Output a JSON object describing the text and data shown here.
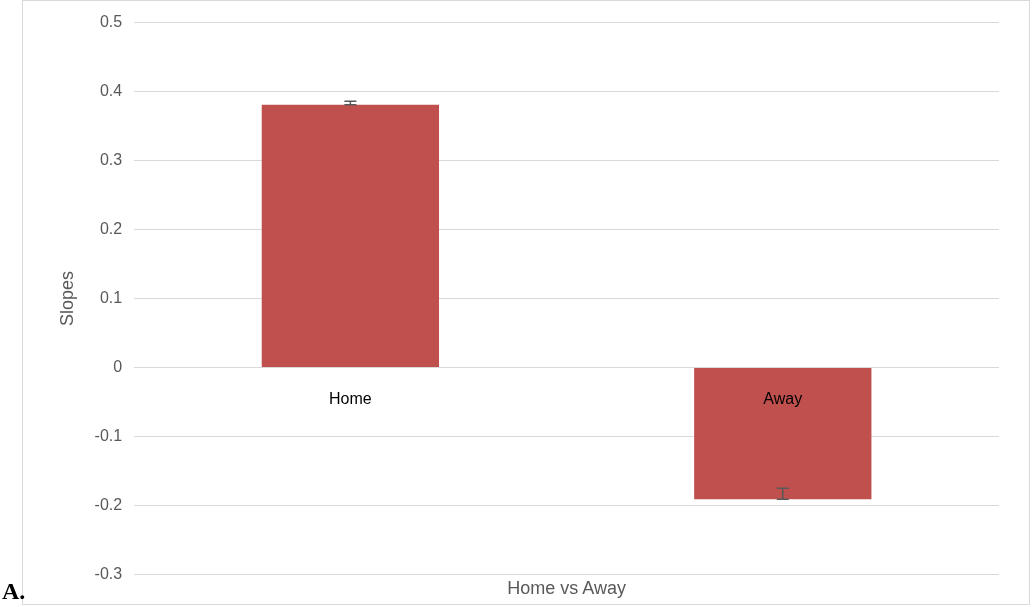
{
  "chart_data": {
    "type": "bar",
    "xlabel": "Home vs Away",
    "ylabel": "Slopes",
    "categories": [
      "Home",
      "Away"
    ],
    "values": [
      0.381,
      -0.191
    ],
    "color": "#c0504d",
    "errors": [
      [
        0.381,
        0.386
      ],
      [
        -0.191,
        -0.175
      ]
    ],
    "ylim": [
      -0.3,
      0.5
    ],
    "yticks": [
      -0.3,
      -0.2,
      -0.1,
      0,
      0.1,
      0.2,
      0.3,
      0.4,
      0.5
    ],
    "grid": "y",
    "annotations": [
      "A."
    ]
  }
}
